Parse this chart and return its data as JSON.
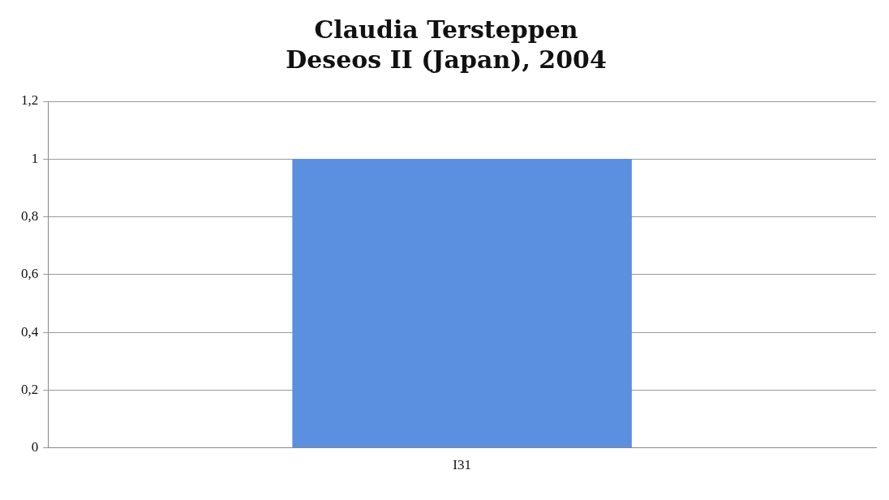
{
  "chart_data": {
    "type": "bar",
    "title": "Claudia Tersteppen\nDeseos II (Japan), 2004",
    "categories": [
      "I31"
    ],
    "values": [
      1
    ],
    "color": "#5b8fe0",
    "ylim": [
      0,
      1.2
    ],
    "yticks": [
      {
        "value": 0,
        "label": "0"
      },
      {
        "value": 0.2,
        "label": "0,2"
      },
      {
        "value": 0.4,
        "label": "0,4"
      },
      {
        "value": 0.6,
        "label": "0,6"
      },
      {
        "value": 0.8,
        "label": "0,8"
      },
      {
        "value": 1,
        "label": "1"
      },
      {
        "value": 1.2,
        "label": "1,2"
      }
    ],
    "grid": "y",
    "legend": false
  }
}
